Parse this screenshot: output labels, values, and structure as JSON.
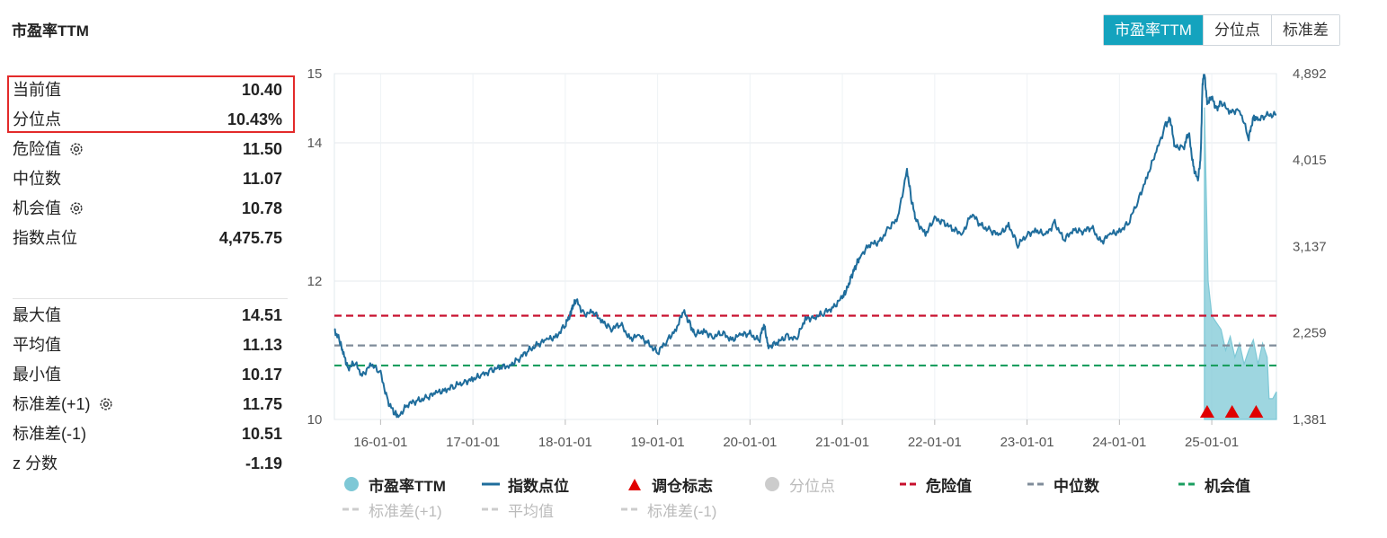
{
  "page_title": "市盈率TTM",
  "tabs": [
    "市盈率TTM",
    "分位点",
    "标准差"
  ],
  "stats_top": [
    {
      "label": "当前值",
      "value": "10.40"
    },
    {
      "label": "分位点",
      "value": "10.43%"
    },
    {
      "label": "危险值",
      "value": "11.50",
      "gear": true
    },
    {
      "label": "中位数",
      "value": "11.07"
    },
    {
      "label": "机会值",
      "value": "10.78",
      "gear": true
    },
    {
      "label": "指数点位",
      "value": "4,475.75"
    }
  ],
  "stats_bottom": [
    {
      "label": "最大值",
      "value": "14.51"
    },
    {
      "label": "平均值",
      "value": "11.13"
    },
    {
      "label": "最小值",
      "value": "10.17"
    },
    {
      "label": "标准差(+1)",
      "value": "11.75",
      "gear": true
    },
    {
      "label": "标准差(-1)",
      "value": "10.51"
    },
    {
      "label": "z 分数",
      "value": "-1.19"
    }
  ],
  "chart_data": {
    "type": "line",
    "x_ticks": [
      "16-01-01",
      "17-01-01",
      "18-01-01",
      "19-01-01",
      "20-01-01",
      "21-01-01",
      "22-01-01",
      "23-01-01",
      "24-01-01",
      "25-01-01"
    ],
    "x_range": [
      2015.5,
      2025.7
    ],
    "left_axis": {
      "ticks": [
        "10",
        "12",
        "14",
        "15"
      ],
      "range": [
        10,
        15
      ]
    },
    "right_axis": {
      "ticks": [
        "1,381",
        "2,259",
        "3,137",
        "4,015",
        "4,892"
      ],
      "range": [
        1381,
        4892
      ]
    },
    "reference_lines": [
      {
        "name": "危险值",
        "value": 11.5,
        "color": "#c8102e"
      },
      {
        "name": "中位数",
        "value": 11.07,
        "color": "#7f8c9a"
      },
      {
        "name": "机会值",
        "value": 10.78,
        "color": "#1a9e5f"
      }
    ],
    "series": [
      {
        "name": "指数点位",
        "color": "#1f6d9c",
        "axis": "right",
        "points": [
          [
            2015.5,
            2280
          ],
          [
            2015.55,
            2200
          ],
          [
            2015.6,
            2040
          ],
          [
            2015.65,
            1900
          ],
          [
            2015.72,
            1960
          ],
          [
            2015.8,
            1830
          ],
          [
            2015.9,
            1940
          ],
          [
            2016.0,
            1850
          ],
          [
            2016.08,
            1560
          ],
          [
            2016.15,
            1445
          ],
          [
            2016.2,
            1420
          ],
          [
            2016.3,
            1540
          ],
          [
            2016.4,
            1570
          ],
          [
            2016.5,
            1600
          ],
          [
            2016.6,
            1650
          ],
          [
            2016.7,
            1680
          ],
          [
            2016.8,
            1720
          ],
          [
            2016.9,
            1760
          ],
          [
            2017.0,
            1790
          ],
          [
            2017.1,
            1830
          ],
          [
            2017.2,
            1880
          ],
          [
            2017.3,
            1910
          ],
          [
            2017.4,
            1930
          ],
          [
            2017.5,
            2000
          ],
          [
            2017.6,
            2080
          ],
          [
            2017.7,
            2140
          ],
          [
            2017.8,
            2190
          ],
          [
            2017.9,
            2220
          ],
          [
            2018.0,
            2340
          ],
          [
            2018.05,
            2440
          ],
          [
            2018.08,
            2530
          ],
          [
            2018.12,
            2590
          ],
          [
            2018.2,
            2450
          ],
          [
            2018.3,
            2470
          ],
          [
            2018.4,
            2380
          ],
          [
            2018.5,
            2300
          ],
          [
            2018.6,
            2350
          ],
          [
            2018.7,
            2200
          ],
          [
            2018.8,
            2230
          ],
          [
            2018.9,
            2150
          ],
          [
            2019.0,
            2060
          ],
          [
            2019.1,
            2180
          ],
          [
            2019.2,
            2300
          ],
          [
            2019.28,
            2480
          ],
          [
            2019.35,
            2350
          ],
          [
            2019.4,
            2240
          ],
          [
            2019.5,
            2280
          ],
          [
            2019.6,
            2220
          ],
          [
            2019.7,
            2260
          ],
          [
            2019.8,
            2190
          ],
          [
            2019.9,
            2240
          ],
          [
            2020.0,
            2250
          ],
          [
            2020.1,
            2180
          ],
          [
            2020.15,
            2350
          ],
          [
            2020.2,
            2120
          ],
          [
            2020.3,
            2160
          ],
          [
            2020.4,
            2230
          ],
          [
            2020.5,
            2190
          ],
          [
            2020.6,
            2400
          ],
          [
            2020.7,
            2420
          ],
          [
            2020.8,
            2460
          ],
          [
            2020.9,
            2520
          ],
          [
            2021.0,
            2620
          ],
          [
            2021.05,
            2700
          ],
          [
            2021.1,
            2840
          ],
          [
            2021.15,
            2950
          ],
          [
            2021.2,
            3050
          ],
          [
            2021.3,
            3160
          ],
          [
            2021.4,
            3180
          ],
          [
            2021.5,
            3320
          ],
          [
            2021.6,
            3420
          ],
          [
            2021.7,
            3920
          ],
          [
            2021.75,
            3600
          ],
          [
            2021.8,
            3400
          ],
          [
            2021.9,
            3260
          ],
          [
            2022.0,
            3420
          ],
          [
            2022.1,
            3380
          ],
          [
            2022.2,
            3310
          ],
          [
            2022.3,
            3270
          ],
          [
            2022.4,
            3470
          ],
          [
            2022.5,
            3350
          ],
          [
            2022.6,
            3300
          ],
          [
            2022.7,
            3250
          ],
          [
            2022.8,
            3360
          ],
          [
            2022.9,
            3150
          ],
          [
            2023.0,
            3260
          ],
          [
            2023.1,
            3300
          ],
          [
            2023.2,
            3250
          ],
          [
            2023.3,
            3380
          ],
          [
            2023.4,
            3200
          ],
          [
            2023.5,
            3310
          ],
          [
            2023.6,
            3290
          ],
          [
            2023.7,
            3330
          ],
          [
            2023.8,
            3180
          ],
          [
            2023.9,
            3260
          ],
          [
            2024.0,
            3290
          ],
          [
            2024.1,
            3380
          ],
          [
            2024.2,
            3600
          ],
          [
            2024.3,
            3850
          ],
          [
            2024.4,
            4100
          ],
          [
            2024.5,
            4370
          ],
          [
            2024.55,
            4430
          ],
          [
            2024.6,
            4150
          ],
          [
            2024.7,
            4150
          ],
          [
            2024.75,
            4300
          ],
          [
            2024.8,
            3950
          ],
          [
            2024.85,
            3800
          ],
          [
            2024.88,
            4050
          ],
          [
            2024.9,
            4800
          ],
          [
            2024.92,
            4892
          ],
          [
            2024.95,
            4600
          ],
          [
            2025.0,
            4650
          ],
          [
            2025.05,
            4530
          ],
          [
            2025.1,
            4600
          ],
          [
            2025.2,
            4500
          ],
          [
            2025.3,
            4530
          ],
          [
            2025.4,
            4240
          ],
          [
            2025.45,
            4450
          ],
          [
            2025.5,
            4420
          ],
          [
            2025.6,
            4470
          ],
          [
            2025.7,
            4476
          ]
        ]
      },
      {
        "name": "市盈率TTM",
        "color": "#7ec8d6",
        "axis": "left",
        "points": [
          [
            2024.92,
            14.51
          ],
          [
            2024.96,
            12.0
          ],
          [
            2025.0,
            11.5
          ],
          [
            2025.05,
            11.4
          ],
          [
            2025.1,
            11.3
          ],
          [
            2025.15,
            11.0
          ],
          [
            2025.2,
            11.2
          ],
          [
            2025.25,
            10.9
          ],
          [
            2025.3,
            11.1
          ],
          [
            2025.35,
            10.8
          ],
          [
            2025.4,
            11.0
          ],
          [
            2025.45,
            11.15
          ],
          [
            2025.5,
            10.8
          ],
          [
            2025.55,
            11.1
          ],
          [
            2025.6,
            10.9
          ],
          [
            2025.62,
            10.3
          ],
          [
            2025.66,
            10.3
          ],
          [
            2025.7,
            10.4
          ]
        ]
      }
    ],
    "rebalance_markers": [
      2024.95,
      2025.22,
      2025.48
    ],
    "legend": [
      {
        "label": "市盈率TTM",
        "shape": "circle",
        "color": "#7ec8d6",
        "active": true
      },
      {
        "label": "指数点位",
        "shape": "line",
        "color": "#1f6d9c",
        "active": true
      },
      {
        "label": "调仓标志",
        "shape": "triangle",
        "color": "#e10000",
        "active": true
      },
      {
        "label": "分位点",
        "shape": "circle",
        "color": "#cccccc",
        "active": false
      },
      {
        "label": "危险值",
        "shape": "dash",
        "color": "#c8102e",
        "active": true
      },
      {
        "label": "中位数",
        "shape": "dash",
        "color": "#7f8c9a",
        "active": true
      },
      {
        "label": "机会值",
        "shape": "dash",
        "color": "#1a9e5f",
        "active": true
      },
      {
        "label": "标准差(+1)",
        "shape": "dash",
        "color": "#cccccc",
        "active": false
      },
      {
        "label": "平均值",
        "shape": "dash",
        "color": "#cccccc",
        "active": false
      },
      {
        "label": "标准差(-1)",
        "shape": "dash",
        "color": "#cccccc",
        "active": false
      }
    ]
  }
}
